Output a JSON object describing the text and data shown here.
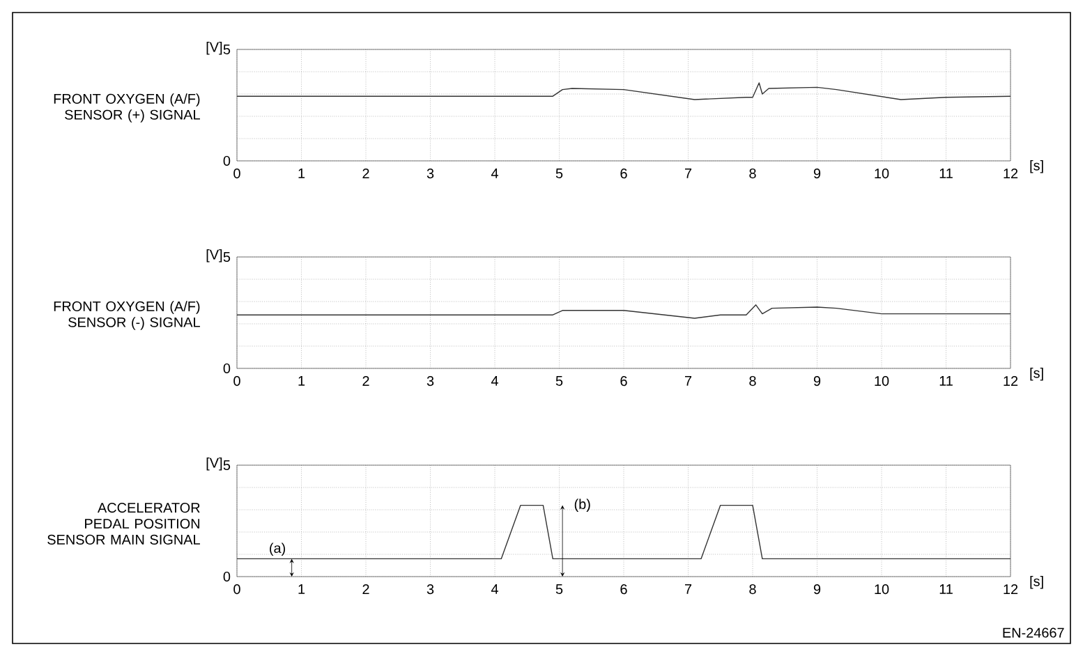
{
  "chart_data": [
    {
      "type": "line",
      "ylabel": "FRONT OXYGEN (A/F) SENSOR (+) SIGNAL",
      "xlabel": "[s]",
      "annotations": [
        "[V]"
      ],
      "color": "#333333",
      "grid": true,
      "xlim": [
        0,
        12
      ],
      "ylim": [
        0,
        5
      ],
      "xticks": [
        0,
        1,
        2,
        3,
        4,
        5,
        6,
        7,
        8,
        9,
        10,
        11,
        12
      ],
      "yticks": [
        0,
        {
          "value": 1,
          "label": null
        },
        {
          "value": 2,
          "label": null
        },
        {
          "value": 3,
          "label": null
        },
        {
          "value": 4,
          "label": null
        },
        5
      ],
      "x": [
        0,
        4.9,
        5.05,
        5.2,
        6,
        7.1,
        7.9,
        8.0,
        8.1,
        8.15,
        8.25,
        9,
        9.3,
        10.3,
        11,
        12
      ],
      "values": [
        2.9,
        2.9,
        3.2,
        3.25,
        3.2,
        2.75,
        2.85,
        2.85,
        3.5,
        3.0,
        3.25,
        3.3,
        3.2,
        2.75,
        2.85,
        2.9
      ]
    },
    {
      "type": "line",
      "ylabel": "FRONT OXYGEN (A/F) SENSOR (-) SIGNAL",
      "xlabel": "[s]",
      "annotations": [
        "[V]"
      ],
      "color": "#333333",
      "grid": true,
      "xlim": [
        0,
        12
      ],
      "ylim": [
        0,
        5
      ],
      "xticks": [
        0,
        1,
        2,
        3,
        4,
        5,
        6,
        7,
        8,
        9,
        10,
        11,
        12
      ],
      "yticks": [
        0,
        {
          "value": 1,
          "label": null
        },
        {
          "value": 2,
          "label": null
        },
        {
          "value": 3,
          "label": null
        },
        {
          "value": 4,
          "label": null
        },
        5
      ],
      "x": [
        0,
        4.9,
        5.05,
        6,
        7.1,
        7.5,
        7.9,
        8.05,
        8.15,
        8.3,
        9,
        9.3,
        10,
        12
      ],
      "values": [
        2.4,
        2.4,
        2.6,
        2.6,
        2.25,
        2.4,
        2.4,
        2.85,
        2.45,
        2.7,
        2.75,
        2.7,
        2.45,
        2.45
      ]
    },
    {
      "type": "line",
      "ylabel": "ACCELERATOR PEDAL POSITION SENSOR MAIN SIGNAL",
      "xlabel": "[s]",
      "annotations": [
        "[V]",
        {
          "text": "(a)",
          "x": 0.85,
          "y": 0.8
        },
        {
          "text": "(b)",
          "x": 5.05,
          "y": 3.2
        },
        "EN-24667"
      ],
      "color": "#333333",
      "grid": true,
      "xlim": [
        0,
        12
      ],
      "ylim": [
        0,
        5
      ],
      "xticks": [
        0,
        1,
        2,
        3,
        4,
        5,
        6,
        7,
        8,
        9,
        10,
        11,
        12
      ],
      "yticks": [
        0,
        {
          "value": 1,
          "label": null
        },
        {
          "value": 2,
          "label": null
        },
        {
          "value": 3,
          "label": null
        },
        {
          "value": 4,
          "label": null
        },
        5
      ],
      "x": [
        0,
        4.1,
        4.4,
        4.75,
        4.9,
        7.2,
        7.5,
        8.0,
        8.15,
        12
      ],
      "values": [
        0.8,
        0.8,
        3.2,
        3.2,
        0.8,
        0.8,
        3.2,
        3.2,
        0.8,
        0.8
      ]
    }
  ]
}
